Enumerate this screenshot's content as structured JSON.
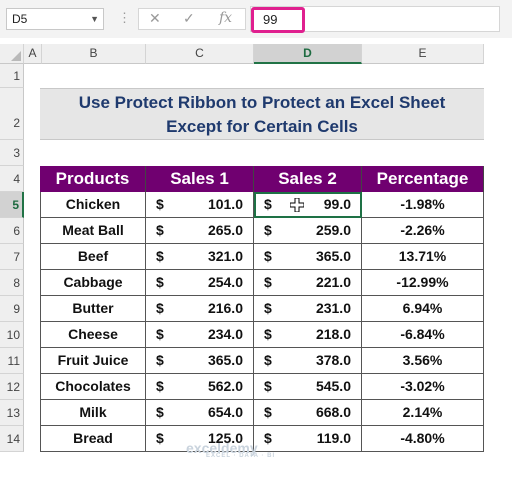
{
  "formula_bar": {
    "name_box": "D5",
    "cancel_glyph": "✕",
    "enter_glyph": "✓",
    "fx_label": "fx",
    "value": "99"
  },
  "columns": [
    "A",
    "B",
    "C",
    "D",
    "E"
  ],
  "selected_column": "D",
  "rows": [
    "1",
    "2",
    "3",
    "4",
    "5",
    "6",
    "7",
    "8",
    "9",
    "10",
    "11",
    "12",
    "13",
    "14"
  ],
  "selected_row": "5",
  "title": {
    "line1": "Use Protect Ribbon to Protect an Excel Sheet",
    "line2": "Except for Certain Cells"
  },
  "table": {
    "headers": [
      "Products",
      "Sales 1",
      "Sales 2",
      "Percentage"
    ],
    "currency": "$",
    "rows": [
      {
        "product": "Chicken",
        "sales1": "101.0",
        "sales2": "99.0",
        "pct": "-1.98%"
      },
      {
        "product": "Meat Ball",
        "sales1": "265.0",
        "sales2": "259.0",
        "pct": "-2.26%"
      },
      {
        "product": "Beef",
        "sales1": "321.0",
        "sales2": "365.0",
        "pct": "13.71%"
      },
      {
        "product": "Cabbage",
        "sales1": "254.0",
        "sales2": "221.0",
        "pct": "-12.99%"
      },
      {
        "product": "Butter",
        "sales1": "216.0",
        "sales2": "231.0",
        "pct": "6.94%"
      },
      {
        "product": "Cheese",
        "sales1": "234.0",
        "sales2": "218.0",
        "pct": "-6.84%"
      },
      {
        "product": "Fruit Juice",
        "sales1": "365.0",
        "sales2": "378.0",
        "pct": "3.56%"
      },
      {
        "product": "Chocolates",
        "sales1": "562.0",
        "sales2": "545.0",
        "pct": "-3.02%"
      },
      {
        "product": "Milk",
        "sales1": "654.0",
        "sales2": "668.0",
        "pct": "2.14%"
      },
      {
        "product": "Bread",
        "sales1": "125.0",
        "sales2": "119.0",
        "pct": "-4.80%"
      }
    ]
  },
  "watermark": {
    "name": "exceldemy",
    "tagline": "EXCEL · DATA · BI"
  },
  "colors": {
    "header_bg": "#700070",
    "title_text": "#1f3a6e",
    "highlight": "#e0208f",
    "selection": "#217346"
  }
}
